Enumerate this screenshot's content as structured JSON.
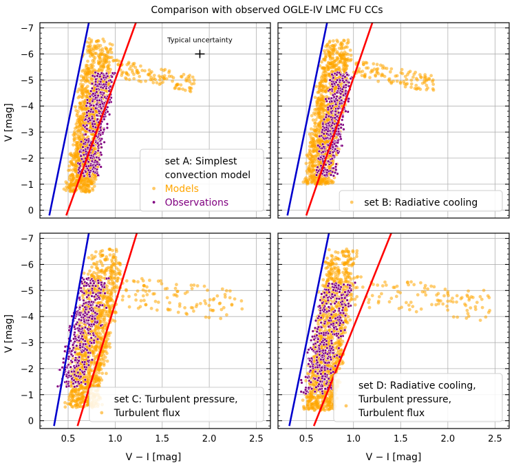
{
  "figure": {
    "title": "Comparison with observed OGLE-IV LMC FU CCs",
    "xlabel": "V − I [mag]",
    "ylabel": "V [mag]",
    "x_tick_labels": [
      "0.5",
      "1.0",
      "1.5",
      "2.0",
      "2.5"
    ],
    "y_tick_labels": [
      "−7",
      "−6",
      "−5",
      "−4",
      "−3",
      "−2",
      "−1",
      "0"
    ],
    "annotation": "Typical uncertainty",
    "colors": {
      "models": "#FFA500",
      "observations": "#800080",
      "blue_edge": "#0000CD",
      "red_edge": "#FF0000",
      "grid": "#b0b0b0"
    }
  },
  "chart_data": [
    {
      "type": "scatter",
      "panel": "A",
      "legend_title_lines": [
        "set A: Simplest",
        " convection model"
      ],
      "legend_entries": [
        "Models",
        "Observations"
      ],
      "legend_position": "lower-right",
      "xlim": [
        0.2,
        2.65
      ],
      "ylim": [
        0.3,
        -7.2
      ],
      "xticks": [
        0.5,
        1.0,
        1.5,
        2.0,
        2.5
      ],
      "yticks": [
        -7,
        -6,
        -5,
        -4,
        -3,
        -2,
        -1,
        0
      ],
      "grid": true,
      "uncertainty_marker": {
        "x": 1.9,
        "y": -6.0,
        "label": "Typical uncertainty"
      },
      "blue_edge": [
        [
          0.3,
          0.2
        ],
        [
          0.72,
          -7.2
        ]
      ],
      "red_edge": [
        [
          0.48,
          0.2
        ],
        [
          1.22,
          -7.2
        ]
      ],
      "series": [
        {
          "name": "Models",
          "color": "#FFA500",
          "regions": [
            {
              "x": [
                0.5,
                1.0
              ],
              "y": [
                -6.6,
                -0.7
              ],
              "density": "high"
            },
            {
              "x": [
                1.0,
                1.85
              ],
              "y": [
                -6.0,
                -4.9
              ],
              "density": "sparse"
            }
          ]
        },
        {
          "name": "Observations",
          "color": "#800080",
          "regions": [
            {
              "x": [
                0.6,
                1.0
              ],
              "y": [
                -5.3,
                -1.3
              ],
              "density": "high"
            }
          ]
        }
      ]
    },
    {
      "type": "scatter",
      "panel": "B",
      "legend_title_lines": [
        "set B: Radiative cooling"
      ],
      "legend_entries": [],
      "legend_position": "lower-right",
      "xlim": [
        0.2,
        2.65
      ],
      "ylim": [
        0.3,
        -7.2
      ],
      "xticks": [
        0.5,
        1.0,
        1.5,
        2.0,
        2.5
      ],
      "yticks": [
        -7,
        -6,
        -5,
        -4,
        -3,
        -2,
        -1,
        0
      ],
      "grid": true,
      "blue_edge": [
        [
          0.3,
          0.2
        ],
        [
          0.72,
          -7.2
        ]
      ],
      "red_edge": [
        [
          0.5,
          0.2
        ],
        [
          1.2,
          -7.2
        ]
      ],
      "series": [
        {
          "name": "Models",
          "color": "#FFA500",
          "regions": [
            {
              "x": [
                0.5,
                1.0
              ],
              "y": [
                -6.6,
                -1.0
              ],
              "density": "high"
            },
            {
              "x": [
                1.0,
                1.85
              ],
              "y": [
                -6.0,
                -4.9
              ],
              "density": "sparse"
            }
          ]
        },
        {
          "name": "Observations",
          "color": "#800080",
          "regions": [
            {
              "x": [
                0.6,
                1.0
              ],
              "y": [
                -5.3,
                -1.3
              ],
              "density": "high"
            }
          ]
        }
      ]
    },
    {
      "type": "scatter",
      "panel": "C",
      "legend_title_lines": [
        "set C: Turbulent pressure,",
        "Turbulent flux"
      ],
      "legend_entries": [],
      "legend_position": "lower-right",
      "xlim": [
        0.2,
        2.65
      ],
      "ylim": [
        0.3,
        -7.2
      ],
      "xticks": [
        0.5,
        1.0,
        1.5,
        2.0,
        2.5
      ],
      "yticks": [
        -7,
        -6,
        -5,
        -4,
        -3,
        -2,
        -1,
        0
      ],
      "grid": true,
      "blue_edge": [
        [
          0.35,
          0.2
        ],
        [
          0.72,
          -7.2
        ]
      ],
      "red_edge": [
        [
          0.6,
          0.2
        ],
        [
          1.23,
          -7.2
        ]
      ],
      "series": [
        {
          "name": "Models",
          "color": "#FFA500",
          "regions": [
            {
              "x": [
                0.5,
                1.1
              ],
              "y": [
                -6.6,
                -0.5
              ],
              "density": "high"
            },
            {
              "x": [
                1.0,
                2.35
              ],
              "y": [
                -6.0,
                -4.0
              ],
              "density": "sparse"
            }
          ]
        },
        {
          "name": "Observations",
          "color": "#800080",
          "regions": [
            {
              "x": [
                0.4,
                0.95
              ],
              "y": [
                -5.5,
                -1.3
              ],
              "density": "high"
            }
          ]
        }
      ]
    },
    {
      "type": "scatter",
      "panel": "D",
      "legend_title_lines": [
        "set D: Radiative cooling,",
        "Turbulent pressure,",
        "Turbulent flux"
      ],
      "legend_entries": [],
      "legend_position": "lower-right",
      "xlim": [
        0.2,
        2.65
      ],
      "ylim": [
        0.3,
        -7.2
      ],
      "xticks": [
        0.5,
        1.0,
        1.5,
        2.0,
        2.5
      ],
      "yticks": [
        -7,
        -6,
        -5,
        -4,
        -3,
        -2,
        -1,
        0
      ],
      "grid": true,
      "blue_edge": [
        [
          0.32,
          0.2
        ],
        [
          0.74,
          -7.2
        ]
      ],
      "red_edge": [
        [
          0.58,
          0.2
        ],
        [
          1.4,
          -7.2
        ]
      ],
      "series": [
        {
          "name": "Models",
          "color": "#FFA500",
          "regions": [
            {
              "x": [
                0.5,
                1.05
              ],
              "y": [
                -6.6,
                -0.4
              ],
              "density": "high"
            },
            {
              "x": [
                1.0,
                2.45
              ],
              "y": [
                -6.0,
                -4.0
              ],
              "density": "sparse"
            }
          ]
        },
        {
          "name": "Observations",
          "color": "#800080",
          "regions": [
            {
              "x": [
                0.45,
                1.0
              ],
              "y": [
                -5.3,
                -1.0
              ],
              "density": "high"
            }
          ]
        }
      ]
    }
  ]
}
